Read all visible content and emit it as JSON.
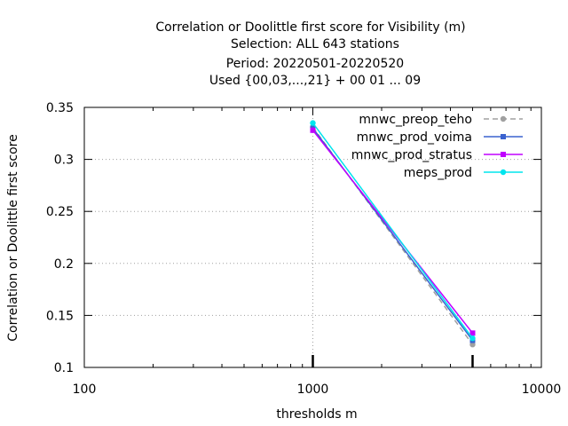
{
  "chart_data": {
    "type": "line",
    "title_lines": [
      "Correlation or Doolittle first score  for Visibility (m)",
      "Selection: ALL    643 stations",
      "Period: 20220501-20220520",
      "Used {00,03,...,21} + 00 01 ... 09"
    ],
    "xlabel": "thresholds m",
    "ylabel": "Correlation or Doolittle first score",
    "x_scale": "log",
    "xlim": [
      100,
      10000
    ],
    "ylim": [
      0.1,
      0.35
    ],
    "x_ticks": [
      100,
      1000,
      10000
    ],
    "x_tick_labels": [
      "100",
      "1000",
      "10000"
    ],
    "y_ticks": [
      0.1,
      0.15,
      0.2,
      0.25,
      0.3,
      0.35
    ],
    "y_tick_labels": [
      "0.1",
      "0.15",
      "0.2",
      "0.25",
      "0.3",
      "0.35"
    ],
    "grid": true,
    "legend_position": "top-right",
    "x": [
      1000,
      5000
    ],
    "series": [
      {
        "name": "mnwc_preop_teho",
        "values": [
          0.331,
          0.122
        ],
        "color": "#a0a0a0",
        "dash": true,
        "marker": "circle"
      },
      {
        "name": "mnwc_prod_voima",
        "values": [
          0.33,
          0.126
        ],
        "color": "#3a62cf",
        "dash": false,
        "marker": "square"
      },
      {
        "name": "mnwc_prod_stratus",
        "values": [
          0.328,
          0.133
        ],
        "color": "#c000ff",
        "dash": false,
        "marker": "square"
      },
      {
        "name": "meps_prod",
        "values": [
          0.335,
          0.128
        ],
        "color": "#00e5ee",
        "dash": false,
        "marker": "circle"
      }
    ]
  }
}
